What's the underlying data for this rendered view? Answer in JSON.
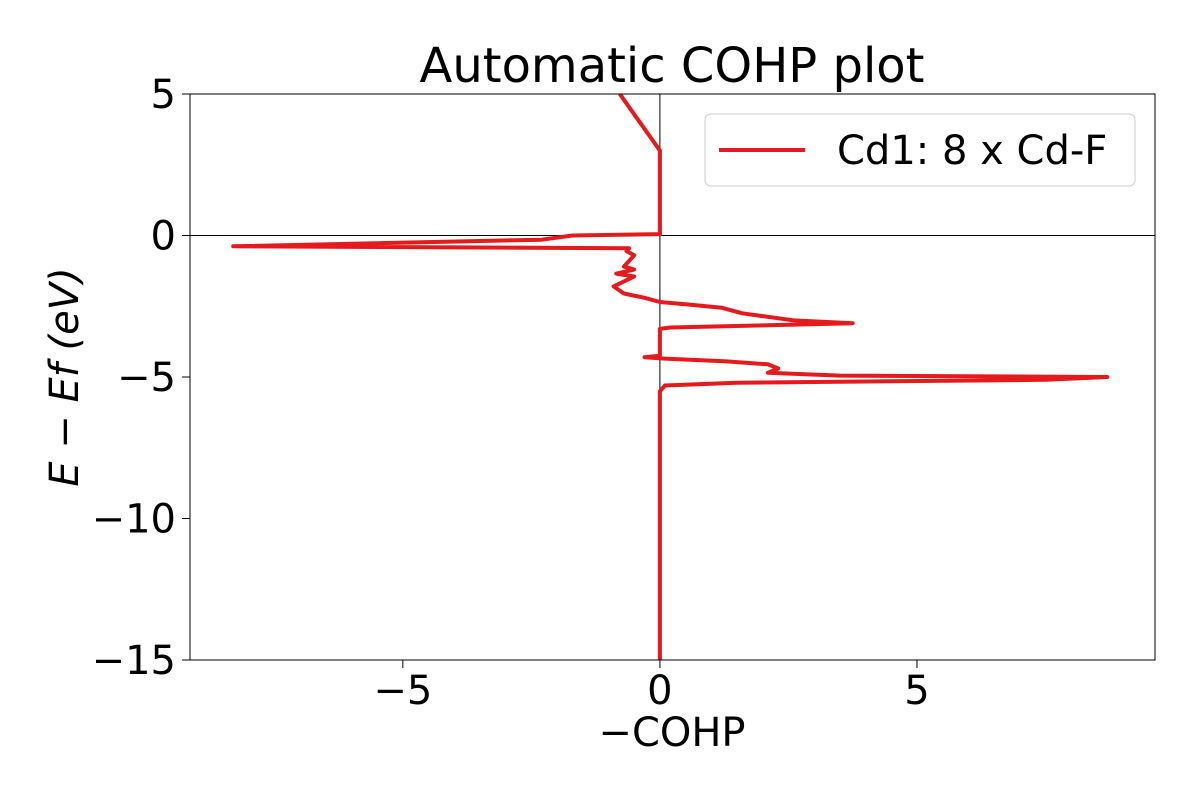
{
  "chart_data": {
    "type": "line",
    "title": "Automatic COHP plot",
    "x_label": "−COHP",
    "y_label": "E − Ef (eV)",
    "x": [
      -0.78,
      0,
      0,
      -1.7,
      -2.3,
      -8.3,
      -0.6,
      -0.65,
      -0.5,
      -0.7,
      -0.5,
      -0.85,
      -0.5,
      -0.9,
      -0.7,
      -0.3,
      0,
      0.6,
      1.2,
      1.6,
      2.6,
      3.75,
      0.2,
      0,
      0,
      -0.3,
      0.1,
      1.3,
      2.1,
      2.3,
      2.1,
      3.5,
      8.7,
      7.5,
      1.5,
      0.1,
      0,
      0
    ],
    "series": [
      {
        "name": "Cd1: 8 x Cd-F",
        "color": "#e41a1c",
        "values": [
          5,
          3,
          0.05,
          0,
          -0.15,
          -0.38,
          -0.45,
          -0.55,
          -0.7,
          -1.1,
          -1.2,
          -1.35,
          -1.45,
          -1.8,
          -2.05,
          -2.2,
          -2.35,
          -2.45,
          -2.55,
          -2.75,
          -3.0,
          -3.1,
          -3.25,
          -3.3,
          -4.25,
          -4.3,
          -4.35,
          -4.45,
          -4.55,
          -4.7,
          -4.85,
          -4.95,
          -5.0,
          -5.1,
          -5.2,
          -5.3,
          -5.5,
          -15
        ]
      }
    ],
    "xlim": [
      -9.14,
      9.63
    ],
    "ylim": [
      -15,
      5
    ],
    "xticks": [
      {
        "value": -5,
        "label": "−5"
      },
      0,
      5
    ],
    "yticks": [
      5,
      0,
      {
        "value": -5,
        "label": "−5"
      },
      {
        "value": -10,
        "label": "−10"
      },
      {
        "value": -15,
        "label": "−15"
      }
    ],
    "legend": "upper right"
  }
}
